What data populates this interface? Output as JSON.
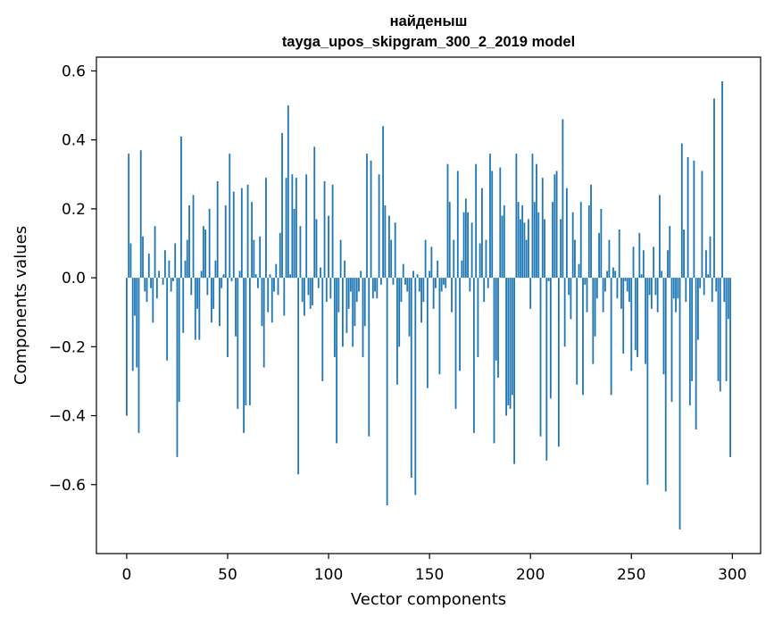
{
  "chart_data": {
    "type": "bar",
    "title": "найденыш",
    "subtitle": "tayga_upos_skipgram_300_2_2019 model",
    "xlabel": "Vector components",
    "ylabel": "Components values",
    "xlim": [
      -15,
      314
    ],
    "ylim": [
      -0.8,
      0.64
    ],
    "x_ticks": [
      0,
      50,
      100,
      150,
      200,
      250,
      300
    ],
    "x_tick_labels": [
      "0",
      "50",
      "100",
      "150",
      "200",
      "250",
      "300"
    ],
    "y_ticks": [
      -0.6,
      -0.4,
      -0.2,
      0.0,
      0.2,
      0.4,
      0.6
    ],
    "y_tick_labels": [
      "−0.6",
      "−0.4",
      "−0.2",
      "0.0",
      "0.2",
      "0.4",
      "0.6"
    ],
    "grid": false,
    "bar_color": "#1f77b4",
    "x": [
      0,
      1,
      2,
      3,
      4,
      5,
      6,
      7,
      8,
      9,
      10,
      11,
      12,
      13,
      14,
      15,
      16,
      17,
      18,
      19,
      20,
      21,
      22,
      23,
      24,
      25,
      26,
      27,
      28,
      29,
      30,
      31,
      32,
      33,
      34,
      35,
      36,
      37,
      38,
      39,
      40,
      41,
      42,
      43,
      44,
      45,
      46,
      47,
      48,
      49,
      50,
      51,
      52,
      53,
      54,
      55,
      56,
      57,
      58,
      59,
      60,
      61,
      62,
      63,
      64,
      65,
      66,
      67,
      68,
      69,
      70,
      71,
      72,
      73,
      74,
      75,
      76,
      77,
      78,
      79,
      80,
      81,
      82,
      83,
      84,
      85,
      86,
      87,
      88,
      89,
      90,
      91,
      92,
      93,
      94,
      95,
      96,
      97,
      98,
      99,
      100,
      101,
      102,
      103,
      104,
      105,
      106,
      107,
      108,
      109,
      110,
      111,
      112,
      113,
      114,
      115,
      116,
      117,
      118,
      119,
      120,
      121,
      122,
      123,
      124,
      125,
      126,
      127,
      128,
      129,
      130,
      131,
      132,
      133,
      134,
      135,
      136,
      137,
      138,
      139,
      140,
      141,
      142,
      143,
      144,
      145,
      146,
      147,
      148,
      149,
      150,
      151,
      152,
      153,
      154,
      155,
      156,
      157,
      158,
      159,
      160,
      161,
      162,
      163,
      164,
      165,
      166,
      167,
      168,
      169,
      170,
      171,
      172,
      173,
      174,
      175,
      176,
      177,
      178,
      179,
      180,
      181,
      182,
      183,
      184,
      185,
      186,
      187,
      188,
      189,
      190,
      191,
      192,
      193,
      194,
      195,
      196,
      197,
      198,
      199,
      200,
      201,
      202,
      203,
      204,
      205,
      206,
      207,
      208,
      209,
      210,
      211,
      212,
      213,
      214,
      215,
      216,
      217,
      218,
      219,
      220,
      221,
      222,
      223,
      224,
      225,
      226,
      227,
      228,
      229,
      230,
      231,
      232,
      233,
      234,
      235,
      236,
      237,
      238,
      239,
      240,
      241,
      242,
      243,
      244,
      245,
      246,
      247,
      248,
      249,
      250,
      251,
      252,
      253,
      254,
      255,
      256,
      257,
      258,
      259,
      260,
      261,
      262,
      263,
      264,
      265,
      266,
      267,
      268,
      269,
      270,
      271,
      272,
      273,
      274,
      275,
      276,
      277,
      278,
      279,
      280,
      281,
      282,
      283,
      284,
      285,
      286,
      287,
      288,
      289,
      290,
      291,
      292,
      293,
      294,
      295,
      296,
      297,
      298,
      299
    ],
    "values": [
      -0.4,
      0.36,
      0.1,
      -0.27,
      -0.11,
      -0.26,
      -0.45,
      0.37,
      0.12,
      -0.04,
      -0.07,
      0.07,
      -0.03,
      -0.13,
      0.15,
      -0.06,
      0.02,
      0.0,
      -0.02,
      0.08,
      -0.24,
      0.05,
      -0.04,
      -0.01,
      0.1,
      -0.52,
      -0.36,
      0.41,
      -0.16,
      0.05,
      0.11,
      0.21,
      -0.05,
      0.24,
      -0.18,
      -0.09,
      -0.18,
      0.02,
      0.15,
      0.14,
      -0.05,
      0.2,
      -0.13,
      -0.09,
      0.05,
      0.28,
      -0.14,
      -0.03,
      0.01,
      0.21,
      -0.23,
      0.36,
      -0.01,
      0.25,
      -0.17,
      -0.38,
      0.02,
      0.26,
      -0.45,
      -0.37,
      0.27,
      -0.37,
      0.22,
      0.11,
      0.01,
      -0.03,
      0.12,
      -0.14,
      -0.26,
      0.29,
      -0.1,
      0.01,
      -0.13,
      -0.04,
      0.04,
      -0.05,
      0.13,
      0.42,
      -0.11,
      0.29,
      0.5,
      0.01,
      0.3,
      0.2,
      0.29,
      -0.57,
      0.15,
      -0.07,
      -0.11,
      0.3,
      -0.05,
      -0.09,
      -0.08,
      0.38,
      0.17,
      -0.03,
      0.03,
      -0.3,
      0.28,
      -0.07,
      0.18,
      -0.06,
      0.27,
      -0.23,
      -0.48,
      -0.1,
      0.11,
      -0.2,
      0.05,
      -0.16,
      -0.09,
      -0.04,
      -0.2,
      -0.14,
      -0.07,
      -0.04,
      0.02,
      -0.23,
      -0.14,
      0.36,
      -0.46,
      0.34,
      -0.06,
      -0.04,
      -0.06,
      0.3,
      -0.02,
      0.44,
      0.21,
      -0.66,
      0.18,
      0.11,
      -0.02,
      0.16,
      -0.31,
      -0.2,
      -0.07,
      0.04,
      -0.02,
      -0.04,
      -0.17,
      -0.58,
      0.02,
      -0.63,
      0.01,
      -0.04,
      -0.13,
      -0.07,
      0.11,
      -0.32,
      0.02,
      0.09,
      -0.09,
      -0.03,
      0.05,
      -0.28,
      -0.04,
      -0.02,
      -0.03,
      0.33,
      0.22,
      -0.1,
      0.11,
      -0.38,
      0.31,
      -0.27,
      0.05,
      0.19,
      0.23,
      0.19,
      -0.04,
      0.16,
      -0.45,
      0.33,
      -0.23,
      0.1,
      0.26,
      -0.07,
      0.11,
      -0.03,
      0.36,
      0.31,
      -0.48,
      -0.24,
      -0.29,
      0.32,
      0.18,
      0.21,
      -0.4,
      -0.37,
      -0.38,
      -0.34,
      -0.54,
      0.36,
      0.22,
      0.17,
      0.21,
      0.16,
      0.11,
      0.17,
      -0.09,
      0.36,
      0.22,
      0.33,
      0.19,
      -0.46,
      0.29,
      0.17,
      -0.53,
      -0.01,
      -0.35,
      0.22,
      0.3,
      0.31,
      -0.49,
      0.17,
      0.46,
      -0.2,
      0.26,
      -0.05,
      -0.12,
      0.19,
      0.11,
      -0.31,
      0.04,
      0.22,
      -0.34,
      -0.02,
      -0.1,
      0.21,
      0.27,
      -0.25,
      -0.17,
      -0.06,
      0.13,
      0.2,
      -0.1,
      -0.04,
      0.02,
      0.11,
      -0.34,
      0.03,
      0.02,
      -0.06,
      0.14,
      -0.09,
      -0.22,
      -0.01,
      -0.04,
      -0.07,
      -0.27,
      0.09,
      -0.21,
      -0.23,
      0.13,
      0.01,
      0.08,
      -0.25,
      -0.6,
      -0.05,
      -0.09,
      0.09,
      -0.05,
      -0.1,
      0.24,
      0.02,
      -0.28,
      -0.62,
      0.08,
      0.15,
      -0.36,
      -0.06,
      -0.1,
      -0.06,
      -0.73,
      0.39,
      0.14,
      -0.07,
      0.35,
      -0.37,
      -0.3,
      0.34,
      -0.44,
      -0.18,
      -0.03,
      0.31,
      -0.05,
      0.08,
      0.01,
      0.12,
      -0.07,
      0.52,
      -0.04,
      -0.3,
      -0.33,
      0.57,
      -0.07,
      -0.3,
      -0.12,
      -0.52
    ]
  }
}
